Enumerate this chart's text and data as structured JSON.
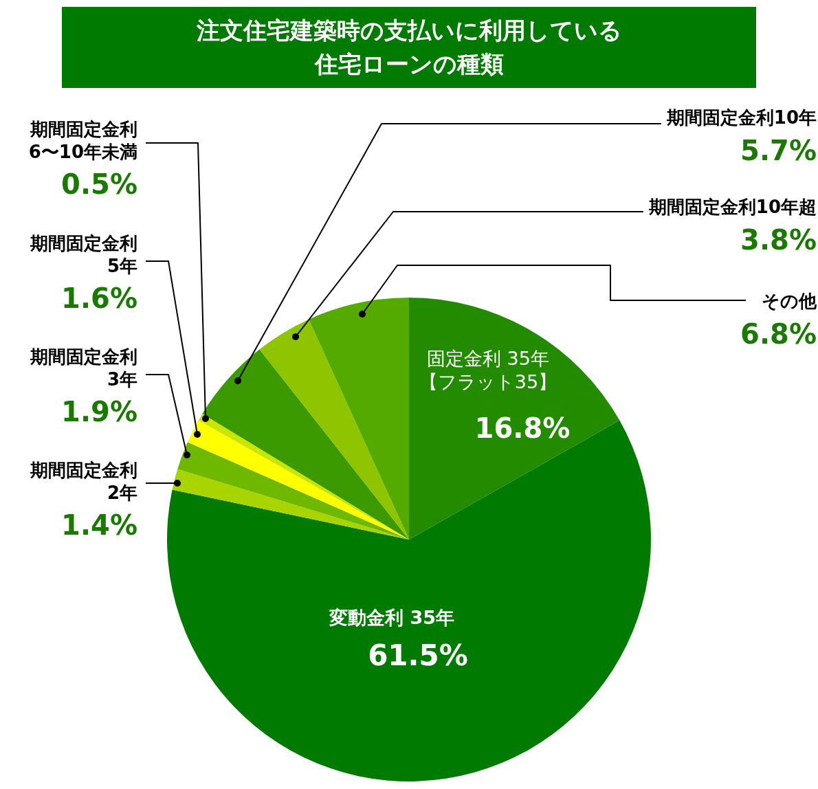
{
  "chart_data": {
    "type": "pie",
    "title": "注文住宅建築時の支払いに利用している住宅ローンの種類",
    "categories": [
      "固定金利 35年【フラット35】",
      "変動金利 35年",
      "期間固定金利2年",
      "期間固定金利3年",
      "期間固定金利5年",
      "期間固定金利6〜10年未満",
      "期間固定金利10年",
      "期間固定金利10年超",
      "その他"
    ],
    "values": [
      16.8,
      61.5,
      1.4,
      1.9,
      1.6,
      0.5,
      5.7,
      3.8,
      6.8
    ],
    "colors": [
      "#228b00",
      "#007a00",
      "#a8d400",
      "#6fb800",
      "#ffff00",
      "#c8e600",
      "#3a9a00",
      "#8fc400",
      "#55aa00"
    ],
    "value_labels": [
      "16.8%",
      "61.5%",
      "1.4%",
      "1.9%",
      "1.6%",
      "0.5%",
      "5.7%",
      "3.8%",
      "6.8%"
    ]
  }
}
